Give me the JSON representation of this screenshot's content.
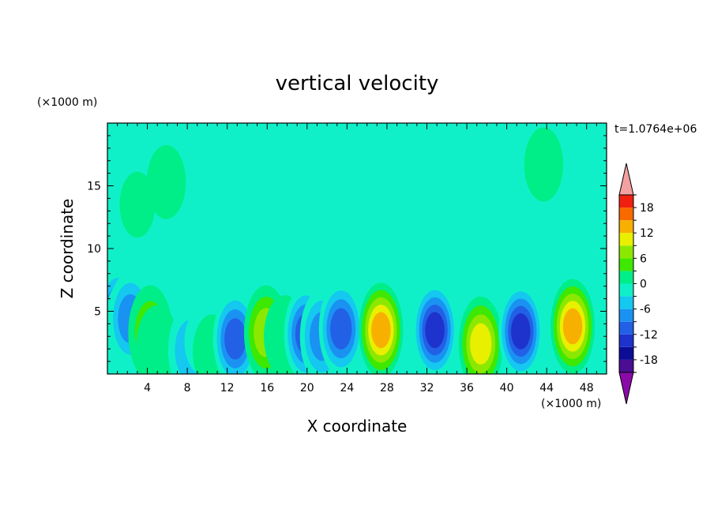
{
  "chart_data": {
    "type": "heatmap",
    "title": "vertical velocity",
    "xlabel": "X coordinate",
    "ylabel": "Z coordinate",
    "x_unit": "(×1000 m)",
    "y_unit": "(×1000 m)",
    "time_label": "t=1.0764e+06",
    "xlim": [
      0,
      50
    ],
    "ylim": [
      0,
      20
    ],
    "x_ticks": [
      4,
      8,
      12,
      16,
      20,
      24,
      28,
      32,
      36,
      40,
      44,
      48
    ],
    "y_ticks": [
      5,
      10,
      15
    ],
    "colorbar": {
      "levels": [
        -21,
        -18,
        -15,
        -12,
        -9,
        -6,
        -3,
        0,
        3,
        6,
        9,
        12,
        15,
        18,
        21
      ],
      "tick_labels": [
        -18,
        -12,
        -6,
        0,
        6,
        12,
        18
      ],
      "colors": [
        "#4b0d92",
        "#0c0d97",
        "#1e32cc",
        "#2260e6",
        "#1a92f2",
        "#14c8f0",
        "#10f0c8",
        "#00ee88",
        "#3ee800",
        "#8ce800",
        "#e8f000",
        "#f8b000",
        "#f86a00",
        "#f02010"
      ],
      "extend_low_color": "#8a0aa8",
      "extend_high_color": "#f4a0a0"
    },
    "cells": [
      {
        "x": 1.1,
        "z": 4.6,
        "v": -12
      },
      {
        "x": 1.9,
        "z": 3.8,
        "v": -7
      },
      {
        "x": 2.3,
        "z": 4.4,
        "v": -11
      },
      {
        "x": 4.3,
        "z": 3.3,
        "v": 7
      },
      {
        "x": 5.0,
        "z": 2.2,
        "v": 5
      },
      {
        "x": 8.3,
        "z": 1.9,
        "v": -6
      },
      {
        "x": 9.5,
        "z": 2.6,
        "v": -3
      },
      {
        "x": 10.5,
        "z": 1.8,
        "v": 4
      },
      {
        "x": 12.8,
        "z": 2.8,
        "v": -13
      },
      {
        "x": 15.9,
        "z": 3.3,
        "v": 9
      },
      {
        "x": 17.8,
        "z": 3.0,
        "v": 5
      },
      {
        "x": 19.9,
        "z": 3.2,
        "v": -12
      },
      {
        "x": 21.5,
        "z": 3.0,
        "v": -9
      },
      {
        "x": 23.4,
        "z": 3.6,
        "v": -13
      },
      {
        "x": 27.4,
        "z": 3.5,
        "v": 15
      },
      {
        "x": 32.8,
        "z": 3.5,
        "v": -17
      },
      {
        "x": 37.4,
        "z": 2.4,
        "v": 13
      },
      {
        "x": 41.4,
        "z": 3.4,
        "v": -16
      },
      {
        "x": 46.6,
        "z": 3.8,
        "v": 15
      },
      {
        "x": 43.7,
        "z": 16.7,
        "v": 4
      },
      {
        "x": 5.9,
        "z": 15.3,
        "v": 4
      },
      {
        "x": 3.0,
        "z": 13.5,
        "v": 3
      }
    ]
  }
}
